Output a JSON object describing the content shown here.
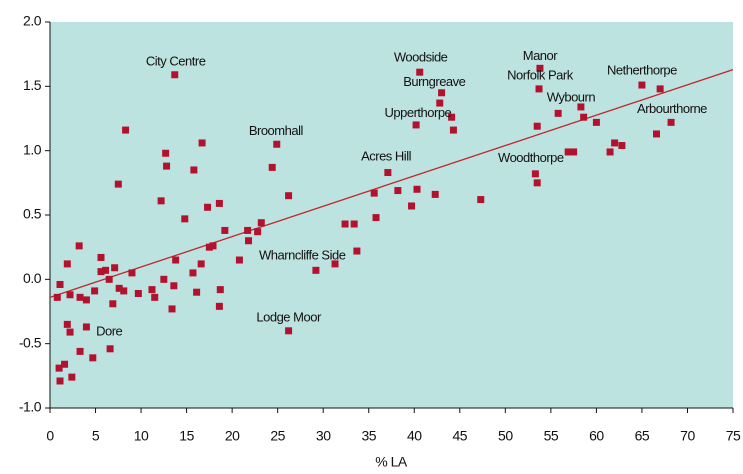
{
  "chart_data": {
    "type": "scatter",
    "x_label": "% LA",
    "xlim": [
      0,
      75
    ],
    "ylim": [
      -1,
      2
    ],
    "xticks": [
      0,
      5,
      10,
      15,
      20,
      25,
      30,
      35,
      40,
      45,
      50,
      55,
      60,
      65,
      70,
      75
    ],
    "yticks": [
      {
        "value": -1,
        "label": "-1.0"
      },
      -0.5,
      {
        "value": 0,
        "label": "0.0"
      },
      0.5,
      {
        "value": 1,
        "label": "1.0"
      },
      1.5,
      {
        "value": 2,
        "label": "2.0"
      }
    ],
    "background": "#bde3e0",
    "color": "#b3122f",
    "x": [
      0.8,
      1.1,
      1.9,
      1.0,
      1.1,
      1.6,
      1.9,
      2.2,
      2.2,
      2.4,
      3.2,
      3.3,
      3.3,
      4.0,
      4.0,
      4.7,
      4.9,
      5.6,
      5.6,
      6.1,
      6.5,
      6.6,
      6.9,
      7.1,
      7.5,
      7.6,
      8.1,
      8.3,
      9.0,
      9.7,
      11.2,
      11.5,
      12.2,
      12.5,
      12.7,
      12.8,
      13.4,
      13.6,
      13.7,
      13.8,
      14.8,
      15.7,
      15.8,
      16.1,
      16.6,
      16.7,
      17.3,
      17.5,
      17.9,
      18.6,
      18.6,
      18.7,
      19.2,
      20.8,
      21.7,
      21.8,
      22.8,
      23.2,
      24.4,
      24.9,
      26.2,
      26.2,
      29.2,
      31.3,
      32.4,
      33.4,
      33.7,
      35.6,
      35.8,
      37.1,
      38.2,
      39.7,
      40.3,
      40.6,
      40.2,
      42.3,
      42.8,
      43.0,
      44.1,
      44.3,
      47.3,
      53.3,
      53.5,
      53.5,
      53.7,
      53.8,
      55.8,
      56.9,
      57.5,
      58.3,
      58.6,
      60.0,
      61.5,
      62.0,
      62.8,
      65.0,
      66.6,
      67.0,
      68.2
    ],
    "y": [
      -0.14,
      -0.04,
      0.12,
      -0.69,
      -0.79,
      -0.66,
      -0.35,
      -0.41,
      -0.12,
      -0.76,
      0.26,
      -0.14,
      -0.56,
      -0.16,
      -0.37,
      -0.61,
      -0.09,
      0.17,
      0.06,
      0.07,
      0.0,
      -0.54,
      -0.19,
      0.09,
      0.74,
      -0.07,
      -0.09,
      1.16,
      0.05,
      -0.11,
      -0.08,
      -0.14,
      0.61,
      0.0,
      0.98,
      0.88,
      -0.23,
      -0.05,
      1.59,
      0.15,
      0.47,
      0.05,
      0.85,
      -0.1,
      0.12,
      1.06,
      0.56,
      0.25,
      0.26,
      0.59,
      -0.21,
      -0.08,
      0.38,
      0.15,
      0.38,
      0.3,
      0.37,
      0.44,
      0.87,
      1.05,
      0.65,
      -0.4,
      0.07,
      0.12,
      0.43,
      0.43,
      0.22,
      0.67,
      0.48,
      0.83,
      0.69,
      0.57,
      0.7,
      1.61,
      1.2,
      0.66,
      1.37,
      1.45,
      1.26,
      1.16,
      0.62,
      0.82,
      0.75,
      1.19,
      1.48,
      1.64,
      1.29,
      0.99,
      0.99,
      1.34,
      1.26,
      1.22,
      0.99,
      1.06,
      1.04,
      1.51,
      1.13,
      1.48,
      1.22
    ],
    "trendline": {
      "x": [
        0,
        75
      ],
      "y": [
        -0.14,
        1.63
      ],
      "color": "#c0262e"
    },
    "annotations": [
      {
        "text": "City Centre",
        "x": 13.8,
        "y": 1.69
      },
      {
        "text": "Woodside",
        "x": 40.7,
        "y": 1.72
      },
      {
        "text": "Burngreave",
        "x": 42.2,
        "y": 1.53
      },
      {
        "text": "Upperthorpe",
        "x": 40.4,
        "y": 1.29
      },
      {
        "text": "Manor",
        "x": 53.8,
        "y": 1.73
      },
      {
        "text": "Norfolk Park",
        "x": 53.8,
        "y": 1.58
      },
      {
        "text": "Wybourn",
        "x": 57.2,
        "y": 1.41
      },
      {
        "text": "Netherthorpe",
        "x": 65.0,
        "y": 1.62
      },
      {
        "text": "Arbourthorne",
        "x": 68.3,
        "y": 1.32
      },
      {
        "text": "Broomhall",
        "x": 24.8,
        "y": 1.15
      },
      {
        "text": "Acres Hill",
        "x": 36.9,
        "y": 0.95
      },
      {
        "text": "Woodthorpe",
        "x": 52.8,
        "y": 0.94
      },
      {
        "text": "Wharncliffe Side",
        "x": 27.7,
        "y": 0.18
      },
      {
        "text": "Lodge Moor",
        "x": 26.2,
        "y": -0.3
      },
      {
        "text": "Dore",
        "x": 6.5,
        "y": -0.41
      }
    ]
  }
}
